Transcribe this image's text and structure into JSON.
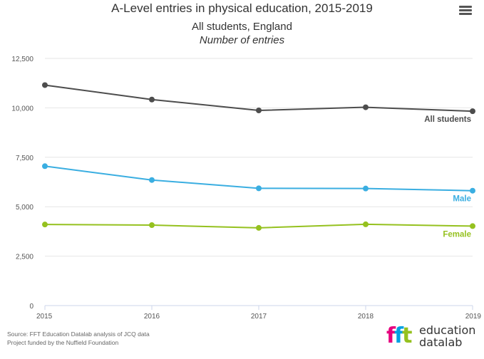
{
  "header": {
    "title": "A-Level entries in physical education, 2015-2019",
    "subtitle": "All students, England",
    "subtitle2": "Number of entries",
    "menu_icon": "hamburger-menu-icon"
  },
  "chart_data": {
    "type": "line",
    "x": [
      "2015",
      "2016",
      "2017",
      "2018",
      "2019"
    ],
    "y_ticks": [
      "0",
      "2,500",
      "5,000",
      "7,500",
      "10,000",
      "12,500"
    ],
    "ylim": [
      0,
      12500
    ],
    "grid": true,
    "series": [
      {
        "name": "All students",
        "values": [
          11150,
          10420,
          9870,
          10030,
          9830
        ],
        "color": "#4d4d4d"
      },
      {
        "name": "Male",
        "values": [
          7050,
          6350,
          5930,
          5920,
          5810
        ],
        "color": "#3aaee1"
      },
      {
        "name": "Female",
        "values": [
          4100,
          4070,
          3930,
          4110,
          4020
        ],
        "color": "#95c11f"
      }
    ]
  },
  "footer": {
    "source_line1": "Source: FFT Education Datalab analysis of JCQ data",
    "source_line2": "Project funded by the Nuffield Foundation",
    "logo_word1": "education",
    "logo_word2": "datalab"
  }
}
